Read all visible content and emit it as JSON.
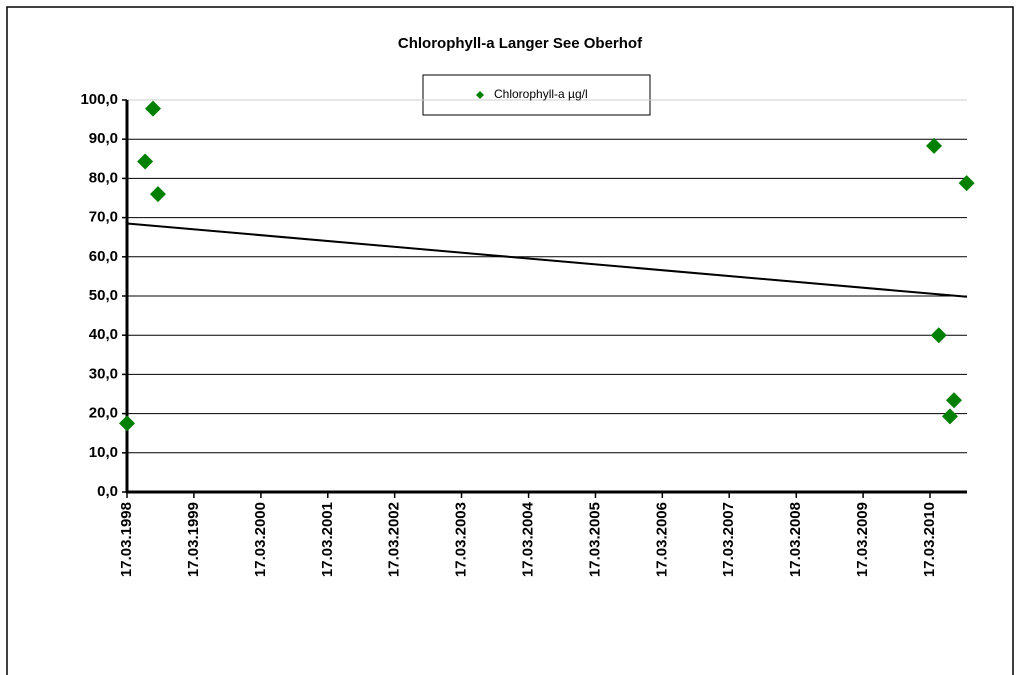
{
  "chart_data": {
    "type": "scatter",
    "title": "Chlorophyll-a  Langer See Oberhof",
    "series": [
      {
        "name": "Chlorophyll-a µg/l",
        "color": "#008000",
        "x": [
          "1998-03-17",
          "1998-06-24",
          "1998-08-06",
          "1998-09-02",
          "2010-04-08",
          "2010-05-04",
          "2010-07-04",
          "2010-07-26",
          "2010-10-03"
        ],
        "values": [
          17.5,
          84.3,
          97.8,
          76,
          88.3,
          40,
          19.3,
          23.4,
          78.8
        ]
      }
    ],
    "trendline": {
      "x": [
        "1998-03-17",
        "2010-10-05"
      ],
      "values": [
        68.5,
        49.8
      ],
      "color": "#000000"
    },
    "xlim": [
      "1998-03-17",
      "2010-10-05"
    ],
    "xticks": [
      {
        "value": "1998-03-17",
        "label": "17.03.1998"
      },
      {
        "value": "1999-03-17",
        "label": "17.03.1999"
      },
      {
        "value": "2000-03-17",
        "label": "17.03.2000"
      },
      {
        "value": "2001-03-17",
        "label": "17.03.2001"
      },
      {
        "value": "2002-03-17",
        "label": "17.03.2002"
      },
      {
        "value": "2003-03-17",
        "label": "17.03.2003"
      },
      {
        "value": "2004-03-17",
        "label": "17.03.2004"
      },
      {
        "value": "2005-03-17",
        "label": "17.03.2005"
      },
      {
        "value": "2006-03-17",
        "label": "17.03.2006"
      },
      {
        "value": "2007-03-17",
        "label": "17.03.2007"
      },
      {
        "value": "2008-03-17",
        "label": "17.03.2008"
      },
      {
        "value": "2009-03-17",
        "label": "17.03.2009"
      },
      {
        "value": "2010-03-17",
        "label": "17.03.2010"
      }
    ],
    "ylim": [
      0,
      100
    ],
    "yticks": [
      {
        "value": 0,
        "label": "0,0"
      },
      {
        "value": 10,
        "label": "10,0"
      },
      {
        "value": 20,
        "label": "20,0"
      },
      {
        "value": 30,
        "label": "30,0"
      },
      {
        "value": 40,
        "label": "40,0"
      },
      {
        "value": 50,
        "label": "50,0"
      },
      {
        "value": 60,
        "label": "60,0"
      },
      {
        "value": 70,
        "label": "70,0"
      },
      {
        "value": 80,
        "label": "80,0"
      },
      {
        "value": 90,
        "label": "90,0"
      },
      {
        "value": 100,
        "label": "100,0"
      }
    ],
    "grid": true,
    "legend": "top"
  }
}
